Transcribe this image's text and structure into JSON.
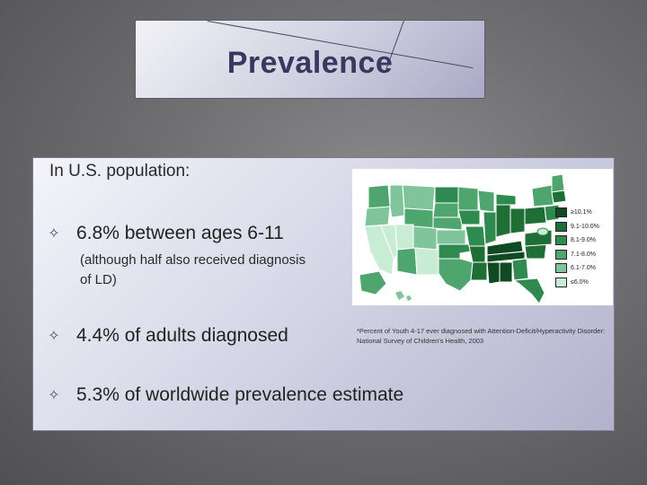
{
  "slide": {
    "title": "Prevalence",
    "intro": "In U.S. population:",
    "bullets": [
      {
        "text": "6.8% between ages 6-11"
      },
      {
        "text": "4.4% of adults diagnosed"
      },
      {
        "text": "5.3% of worldwide prevalence estimate"
      }
    ],
    "sub_note": "(although half also received diagnosis of LD)",
    "bullet_glyph": "✧"
  },
  "map": {
    "legend": [
      {
        "label": "≥10.1%",
        "color": "#0f4a22"
      },
      {
        "label": "9.1-10.0%",
        "color": "#1f6e36"
      },
      {
        "label": "8.1-9.0%",
        "color": "#2f8a50"
      },
      {
        "label": "7.1-8.0%",
        "color": "#4fa56e"
      },
      {
        "label": "6.1-7.0%",
        "color": "#7fc49a"
      },
      {
        "label": "≤6.0%",
        "color": "#c9ecd4"
      }
    ],
    "caption": "*Percent of Youth 4-17 ever diagnosed with Attention-Deficit/Hyperactivity Disorder: National Survey of Children's Health, 2003"
  }
}
